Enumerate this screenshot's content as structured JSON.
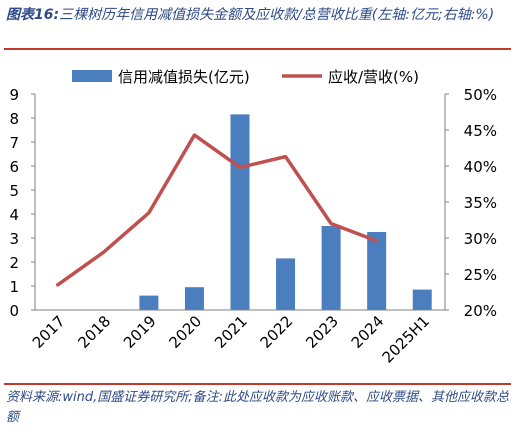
{
  "title_prefix": "图表16:",
  "title_text": "三棵树历年信用减值损失金额及应收款/总营收比重(左轴:亿元;右轴:%)",
  "source_text": "资料来源:wind,国盛证券研究所;备注:此处应收款为应收账款、应收票据、其他应收款总额",
  "chart_data": {
    "type": "bar+line",
    "categories": [
      "2017",
      "2018",
      "2019",
      "2020",
      "2021",
      "2022",
      "2023",
      "2024",
      "2025H1"
    ],
    "series": [
      {
        "name": "信用减值损失(亿元)",
        "type": "bar",
        "axis": "left",
        "color": "#4a7ebf",
        "values": [
          null,
          null,
          0.6,
          0.95,
          8.15,
          2.15,
          3.5,
          3.25,
          0.85
        ]
      },
      {
        "name": "应收/营收(%)",
        "type": "line",
        "axis": "right",
        "color": "#c0504d",
        "values": [
          23.5,
          28.0,
          33.5,
          44.3,
          39.8,
          41.3,
          32.0,
          29.6,
          null
        ]
      }
    ],
    "left_axis": {
      "min": 0,
      "max": 9,
      "ticks": [
        "0",
        "1",
        "2",
        "3",
        "4",
        "5",
        "6",
        "7",
        "8",
        "9"
      ]
    },
    "right_axis": {
      "min": 20,
      "max": 50,
      "ticks": [
        "20%",
        "25%",
        "30%",
        "35%",
        "40%",
        "45%",
        "50%"
      ]
    },
    "grid": false,
    "legend_position": "top"
  }
}
